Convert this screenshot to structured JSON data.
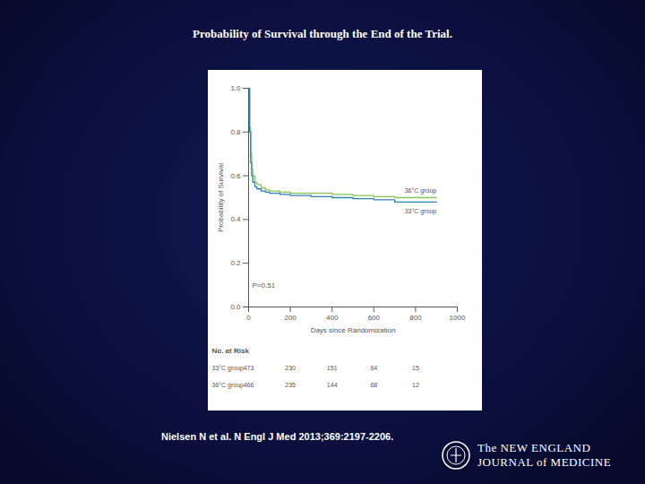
{
  "chart_data": {
    "type": "line",
    "title": "Probability of Survival through the End of the Trial.",
    "caption": "Nielsen N et al. N Engl J Med 2013;369:2197-2206.",
    "x_label": "Days since Randomization",
    "y_label": "Probability of Survival",
    "annotation": "P=0.51",
    "line_style": "step",
    "xlim": [
      0,
      1000
    ],
    "xticks": [
      0,
      200,
      400,
      600,
      800,
      1000
    ],
    "ylim": [
      0,
      1
    ],
    "yticks": [
      {
        "value": 0,
        "label": "0.0"
      },
      {
        "value": 0.2,
        "label": "0.2"
      },
      {
        "value": 0.4,
        "label": "0.4"
      },
      {
        "value": 0.6,
        "label": "0.6"
      },
      {
        "value": 0.8,
        "label": "0.8"
      },
      {
        "value": 1,
        "label": "1.0"
      }
    ],
    "grid": false,
    "series": [
      {
        "name": "36°C group",
        "color": "#86c45a",
        "x": [
          0,
          5,
          10,
          15,
          20,
          30,
          40,
          60,
          80,
          100,
          150,
          200,
          300,
          400,
          500,
          600,
          700,
          800,
          900
        ],
        "values": [
          1.0,
          0.82,
          0.7,
          0.63,
          0.6,
          0.57,
          0.56,
          0.545,
          0.535,
          0.53,
          0.525,
          0.52,
          0.52,
          0.515,
          0.51,
          0.505,
          0.5,
          0.5,
          0.5
        ]
      },
      {
        "name": "33°C group",
        "color": "#2f7fb5",
        "x": [
          0,
          5,
          10,
          15,
          20,
          30,
          40,
          60,
          80,
          100,
          150,
          200,
          300,
          400,
          500,
          600,
          700,
          800,
          900
        ],
        "values": [
          1.0,
          0.8,
          0.66,
          0.6,
          0.57,
          0.55,
          0.54,
          0.53,
          0.525,
          0.52,
          0.515,
          0.51,
          0.505,
          0.5,
          0.495,
          0.49,
          0.48,
          0.48,
          0.48
        ]
      }
    ],
    "at_risk": {
      "title": "No. at Risk",
      "x": [
        0,
        200,
        400,
        600,
        800
      ],
      "rows": [
        {
          "name": "33°C group",
          "values": [
            473,
            230,
            151,
            64,
            15
          ]
        },
        {
          "name": "36°C group",
          "values": [
            466,
            235,
            144,
            68,
            12
          ]
        }
      ]
    }
  },
  "logo": [
    "The NEW ENGLAND",
    "JOURNAL of MEDICINE"
  ]
}
